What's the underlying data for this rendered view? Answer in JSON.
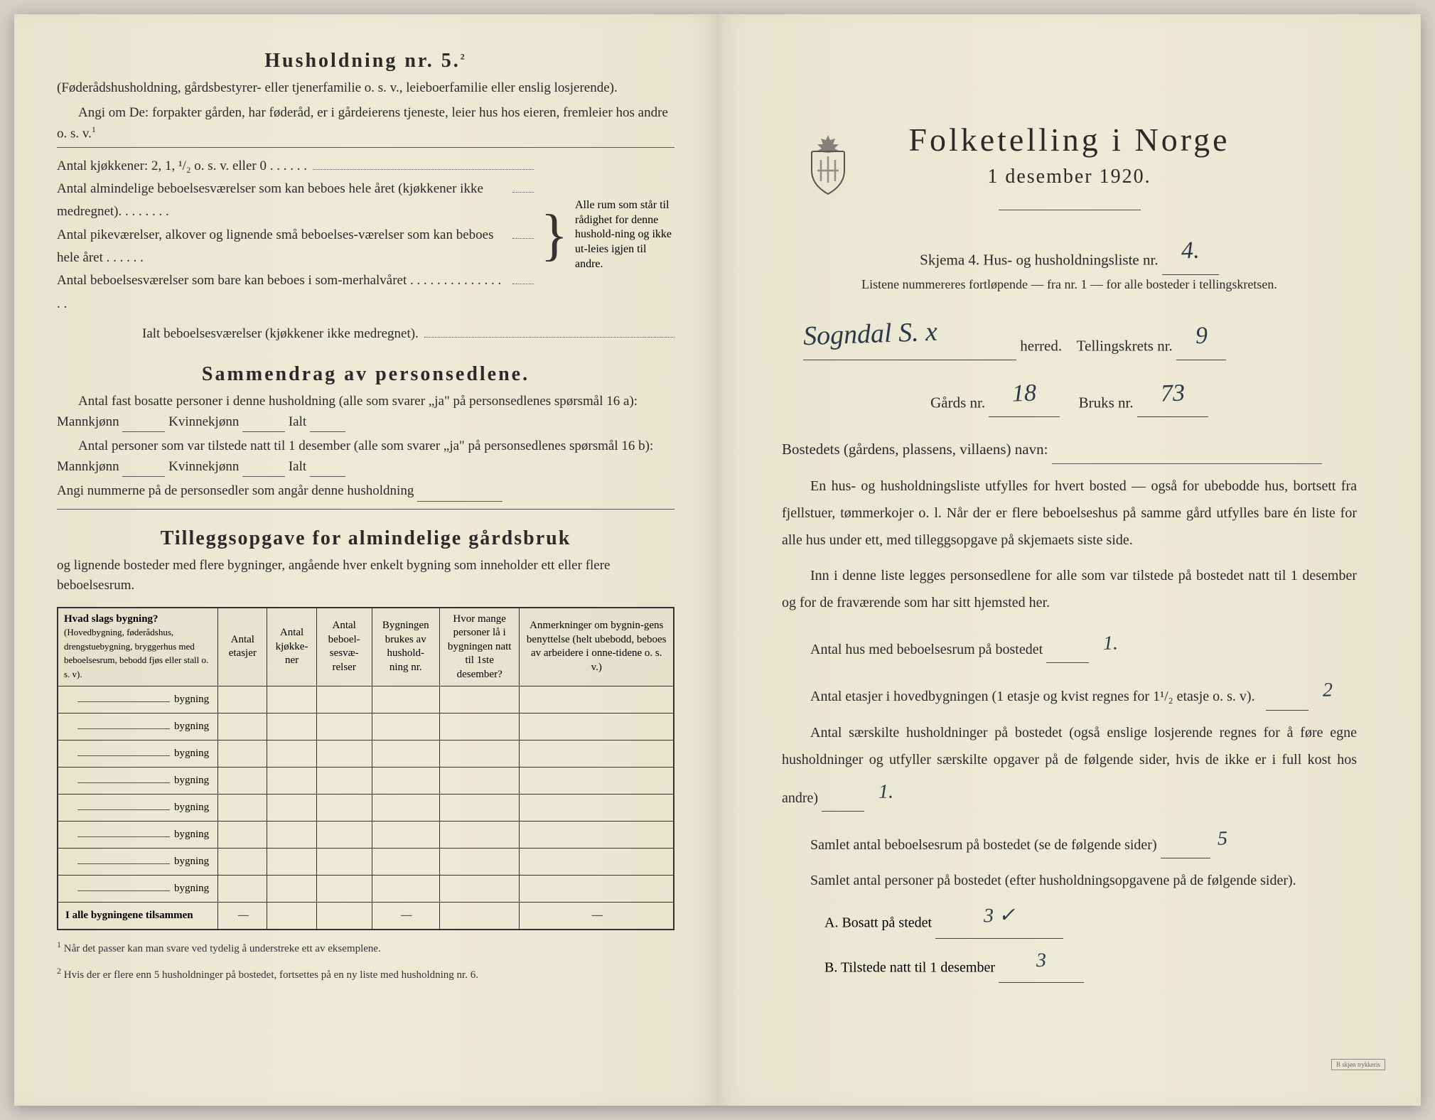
{
  "colors": {
    "paper": "#ebe8d4",
    "ink": "#2a2a2a",
    "handwriting": "#2a3a4a",
    "border": "#333333"
  },
  "leftPage": {
    "section1": {
      "title": "Husholdning nr. 5.",
      "titleSup": "2",
      "intro": "(Føderådshusholdning, gårdsbestyrer- eller tjenerfamilie o. s. v., leieboerfamilie eller enslig losjerende).",
      "angi": "Angi om De:  forpakter gården, har føderåd, er i gårdeierens tjeneste, leier hus hos eieren, fremleier hos andre o. s. v.",
      "kjokkenLine": "Antal kjøkkener: 2, 1, ¹/₂ o. s. v. eller 0 . . . . . .",
      "lines": [
        "Antal almindelige beboelsesværelser som kan beboes hele året (kjøkkener ikke medregnet). . . . . . . .",
        "Antal pikeværelser, alkover og lignende små beboelses-værelser som kan beboes hele året . . . . . .",
        "Antal beboelsesværelser som bare kan beboes i som-merhalvåret . . . . . . . . . . . . . . . ."
      ],
      "ialt": "Ialt beboelsesværelser  (kjøkkener ikke medregnet).",
      "bracketNote": "Alle rum som står til rådighet for denne hushold-ning og ikke ut-leies igjen til andre."
    },
    "section2": {
      "title": "Sammendrag av personsedlene.",
      "line1a": "Antal fast bosatte personer i denne husholdning (alle som svarer „ja\" på personsedlenes spørsmål 16 a): Mannkjønn",
      "line1b": "Kvinnekjønn",
      "line1c": "Ialt",
      "line2a": "Antal personer som var tilstede natt til 1 desember (alle som svarer „ja\" på personsedlenes spørsmål 16 b): Mannkjønn",
      "line2b": "Kvinnekjønn",
      "line2c": "Ialt",
      "line3": "Angi nummerne på de personsedler som angår denne husholdning"
    },
    "section3": {
      "title": "Tilleggsopgave for almindelige gårdsbruk",
      "subtitle": "og lignende bosteder med flere bygninger, angående hver enkelt bygning som inneholder ett eller flere beboelsesrum.",
      "table": {
        "headers": [
          {
            "main": "Hvad slags bygning?",
            "sub": "(Hovedbygning, føderådshus, drengstuebygning, bryggerhus med beboelsesrum, bebodd fjøs eller stall o. s. v)."
          },
          {
            "main": "Antal etasjer",
            "sub": ""
          },
          {
            "main": "Antal kjøkke-ner",
            "sub": ""
          },
          {
            "main": "Antal beboel-sesvæ-relser",
            "sub": ""
          },
          {
            "main": "Bygningen brukes av hushold-ning nr.",
            "sub": ""
          },
          {
            "main": "Hvor mange personer lå i bygningen natt til 1ste desember?",
            "sub": ""
          },
          {
            "main": "Anmerkninger om bygnin-gens benyttelse (helt ubebodd, beboes av arbeidere i onne-tidene o. s. v.)",
            "sub": ""
          }
        ],
        "rowLabel": "bygning",
        "rowCount": 8,
        "totalLabel": "I alle bygningene tilsammen",
        "dash": "—"
      }
    },
    "footnotes": [
      "Når det passer kan man svare ved tydelig å understreke ett av eksemplene.",
      "Hvis der er flere enn 5 husholdninger på bostedet, fortsettes på en ny liste med husholdning nr. 6."
    ]
  },
  "rightPage": {
    "title": "Folketelling i Norge",
    "subtitle": "1 desember 1920.",
    "skjemaLine": "Skjema 4.  Hus- og husholdningsliste nr.",
    "skjemaValue": "4.",
    "instruction": "Listene nummereres fortløpende — fra nr. 1 — for alle bosteder i tellingskretsen.",
    "herredValue": "Sogndal S. x",
    "herredLabel": "herred.",
    "tellingskretsLabel": "Tellingskrets nr.",
    "tellingskretsValue": "9",
    "gardsNrLabel": "Gårds nr.",
    "gardsNrValue": "18",
    "bruksNrLabel": "Bruks nr.",
    "bruksNrValue": "73",
    "bostedLabel": "Bostedets (gårdens, plassens, villaens) navn:",
    "bostedValue": "",
    "para1": "En hus- og husholdningsliste utfylles for hvert bosted — også for ubebodde hus, bortsett fra fjellstuer, tømmerkojer o. l.  Når der er flere beboelseshus på samme gård utfylles bare én liste for alle hus under ett, med tilleggsopgave på skjemaets siste side.",
    "para2": "Inn i denne liste legges personsedlene for alle som var tilstede på bostedet natt til 1 desember og for de fraværende som har sitt hjemsted her.",
    "q1Label": "Antal hus med beboelsesrum på bostedet",
    "q1Value": "1.",
    "q2Label": "Antal etasjer i hovedbygningen (1 etasje og kvist regnes for 1¹/₂ etasje o. s. v).",
    "q2Value": "2",
    "q3Label": "Antal særskilte husholdninger på bostedet (også enslige losjerende regnes for å føre egne husholdninger og utfyller særskilte opgaver på de følgende sider, hvis de ikke er i full kost hos andre)",
    "q3Value": "1.",
    "q4Label": "Samlet antal beboelsesrum på bostedet (se de følgende sider)",
    "q4Value": "5",
    "q5Label": "Samlet antal personer på bostedet (efter husholdningsopgavene på de følgende sider).",
    "q5aLabel": "A.  Bosatt på stedet",
    "q5aValue": "3 ✓",
    "q5bLabel": "B.  Tilstede natt til 1 desember",
    "q5bValue": "3",
    "stampText": "B skjøn trykkeris"
  }
}
